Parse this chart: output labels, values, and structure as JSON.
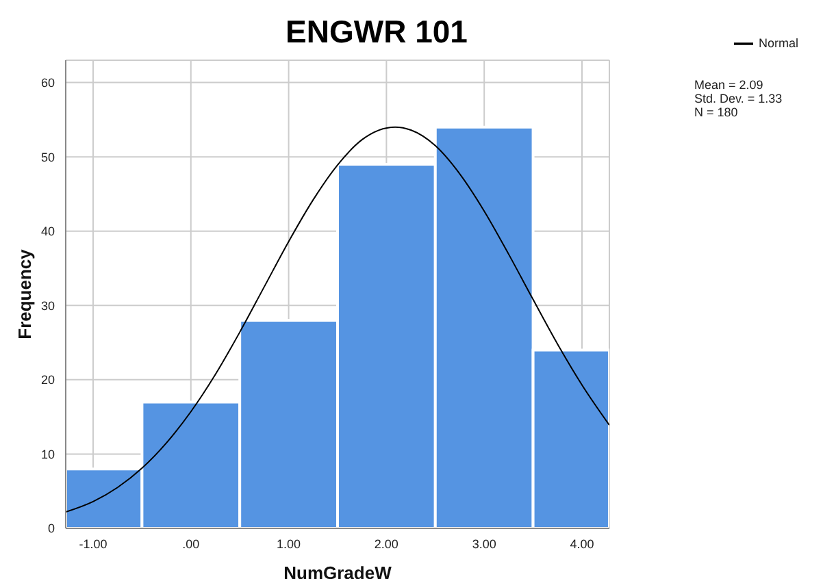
{
  "chart_data": {
    "type": "histogram",
    "title": "ENGWR 101",
    "xlabel": "NumGradeW",
    "ylabel": "Frequency",
    "bins": [
      -1.28,
      -0.5,
      0.5,
      1.5,
      2.5,
      3.5,
      4.28
    ],
    "values": [
      8,
      17,
      28,
      49,
      54,
      24
    ],
    "color": "#5594e2",
    "series": [
      {
        "name": "Normal",
        "type": "line",
        "color": "#000000",
        "x": [
          -1.28,
          -1.0,
          -0.75,
          -0.5,
          -0.25,
          0,
          0.25,
          0.5,
          0.75,
          1.0,
          1.25,
          1.5,
          1.75,
          2.09,
          2.25,
          2.5,
          2.75,
          3.0,
          3.25,
          3.5,
          3.75,
          4.0,
          4.28
        ],
        "values": [
          2.2,
          3.6,
          5.5,
          8.1,
          11.5,
          15.7,
          20.7,
          26.4,
          32.5,
          38.6,
          44.2,
          48.9,
          52.3,
          54.0,
          53.6,
          51.5,
          47.7,
          42.7,
          36.9,
          30.8,
          24.8,
          19.3,
          13.9
        ]
      }
    ],
    "xlim": [
      -1.28,
      4.28
    ],
    "xticks": [
      {
        "value": -1,
        "label": "-1.00"
      },
      {
        "value": 0,
        "label": ".00"
      },
      {
        "value": 1,
        "label": "1.00"
      },
      {
        "value": 2,
        "label": "2.00"
      },
      {
        "value": 3,
        "label": "3.00"
      },
      {
        "value": 4,
        "label": "4.00"
      }
    ],
    "ylim": [
      0,
      63
    ],
    "yticks": [
      0,
      10,
      20,
      30,
      40,
      50,
      60
    ],
    "grid": true,
    "legend": "top right",
    "marker": "none",
    "line_style": "solid",
    "annotations": [
      "Mean = 2.09",
      "Std. Dev. = 1.33",
      "N = 180"
    ]
  }
}
